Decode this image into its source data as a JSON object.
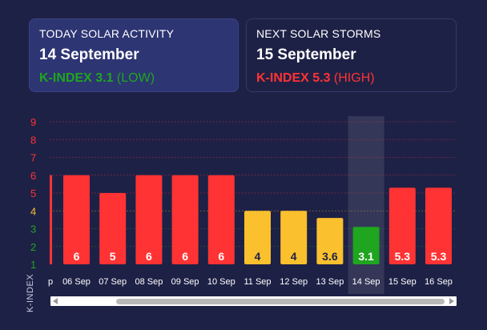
{
  "today": {
    "label": "TODAY SOLAR ACTIVITY",
    "date": "14 September",
    "kindex_label": "K-INDEX 3.1",
    "level": "(LOW)",
    "color": "#1fa51f"
  },
  "next": {
    "label": "NEXT SOLAR STORMS",
    "date": "15 September",
    "kindex_label": "K-INDEX 5.3",
    "level": "(HIGH)",
    "color": "#ff3333"
  },
  "colors": {
    "high": "#ff3333",
    "medium": "#fbc02d",
    "low": "#1fa51f"
  },
  "chart_data": {
    "type": "bar",
    "ylabel": "K-INDEX",
    "ylim": [
      1,
      9
    ],
    "yticks": [
      {
        "label": "1",
        "color": "#1fa51f"
      },
      {
        "label": "2",
        "color": "#1fa51f"
      },
      {
        "label": "3",
        "color": "#1fa51f"
      },
      {
        "label": "4",
        "color": "#fbc02d"
      },
      {
        "label": "5",
        "color": "#ff3333"
      },
      {
        "label": "6",
        "color": "#ff3333"
      },
      {
        "label": "7",
        "color": "#ff3333"
      },
      {
        "label": "8",
        "color": "#ff3333"
      },
      {
        "label": "9",
        "color": "#ff3333"
      }
    ],
    "partial_first_label": "p",
    "categories": [
      "06 Sep",
      "07 Sep",
      "08 Sep",
      "09 Sep",
      "10 Sep",
      "11 Sep",
      "12 Sep",
      "13 Sep",
      "14 Sep",
      "15 Sep",
      "16 Sep"
    ],
    "values": [
      6,
      5,
      6,
      6,
      6,
      4,
      4,
      3.6,
      3.1,
      5.3,
      5.3
    ],
    "value_labels": [
      "6",
      "5",
      "6",
      "6",
      "6",
      "4",
      "4",
      "3.6",
      "3.1",
      "5.3",
      "5.3"
    ],
    "bar_colors": [
      "#ff3333",
      "#ff3333",
      "#ff3333",
      "#ff3333",
      "#ff3333",
      "#fbc02d",
      "#fbc02d",
      "#fbc02d",
      "#1fa51f",
      "#ff3333",
      "#ff3333"
    ],
    "label_colors": [
      "#ffffff",
      "#ffffff",
      "#ffffff",
      "#ffffff",
      "#ffffff",
      "#1e2146",
      "#1e2146",
      "#1e2146",
      "#ffffff",
      "#ffffff",
      "#ffffff"
    ],
    "highlight_index": 8
  }
}
